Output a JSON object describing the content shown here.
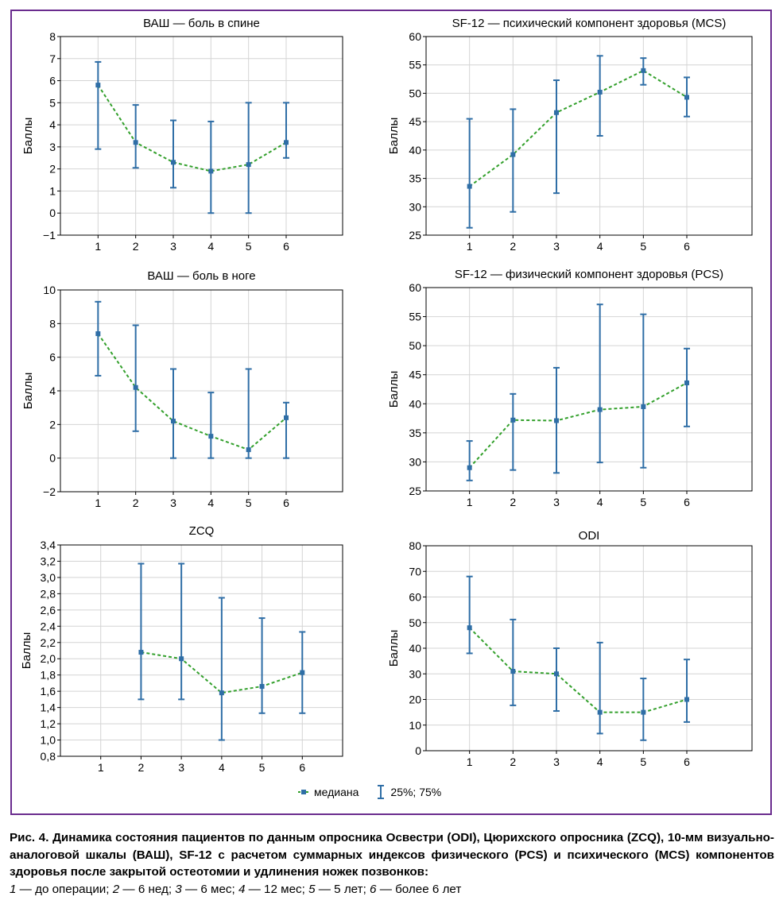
{
  "chart_data": [
    {
      "type": "line",
      "title": "ВАШ — боль в спине",
      "ylabel": "Баллы",
      "ylim": [
        -1,
        8
      ],
      "yticks": [
        "−1",
        "0",
        "1",
        "2",
        "3",
        "4",
        "5",
        "6",
        "7",
        "8"
      ],
      "ytick_values": [
        -1,
        0,
        1,
        2,
        3,
        4,
        5,
        6,
        7,
        8
      ],
      "xlim": [
        0,
        7.5
      ],
      "categories": [
        "1",
        "2",
        "3",
        "4",
        "5",
        "6"
      ],
      "x": [
        1,
        2,
        3,
        4,
        5,
        6
      ],
      "series": [
        {
          "name": "медиана",
          "values": [
            5.8,
            3.2,
            2.3,
            1.9,
            2.2,
            3.2
          ]
        },
        {
          "name": "25%",
          "values": [
            2.9,
            2.05,
            1.15,
            0.0,
            0.0,
            2.5
          ]
        },
        {
          "name": "75%",
          "values": [
            6.85,
            4.9,
            4.2,
            4.15,
            5.0,
            5.0
          ]
        }
      ],
      "grid": true
    },
    {
      "type": "line",
      "title": "SF-12 — психический компонент здоровья (MCS)",
      "ylabel": "Баллы",
      "ylim": [
        25,
        60
      ],
      "yticks": [
        "25",
        "30",
        "35",
        "40",
        "45",
        "50",
        "55",
        "60"
      ],
      "ytick_values": [
        25,
        30,
        35,
        40,
        45,
        50,
        55,
        60
      ],
      "xlim": [
        0,
        7.5
      ],
      "categories": [
        "1",
        "2",
        "3",
        "4",
        "5",
        "6"
      ],
      "x": [
        1,
        2,
        3,
        4,
        5,
        6
      ],
      "series": [
        {
          "name": "медиана",
          "values": [
            33.6,
            39.2,
            46.6,
            50.2,
            54.0,
            49.3
          ]
        },
        {
          "name": "25%",
          "values": [
            26.3,
            29.1,
            32.4,
            42.5,
            51.5,
            45.9
          ]
        },
        {
          "name": "75%",
          "values": [
            45.5,
            47.2,
            52.3,
            56.6,
            56.2,
            52.8
          ]
        }
      ],
      "grid": true
    },
    {
      "type": "line",
      "title": "ВАШ — боль в ноге",
      "ylabel": "Баллы",
      "ylim": [
        -2,
        10
      ],
      "yticks": [
        "−2",
        "0",
        "2",
        "4",
        "6",
        "8",
        "10"
      ],
      "ytick_values": [
        -2,
        0,
        2,
        4,
        6,
        8,
        10
      ],
      "xlim": [
        0,
        7.5
      ],
      "categories": [
        "1",
        "2",
        "3",
        "4",
        "5",
        "6"
      ],
      "x": [
        1,
        2,
        3,
        4,
        5,
        6
      ],
      "series": [
        {
          "name": "медиана",
          "values": [
            7.4,
            4.2,
            2.2,
            1.3,
            0.5,
            2.4
          ]
        },
        {
          "name": "25%",
          "values": [
            4.9,
            1.6,
            0.0,
            0.0,
            0.0,
            0.0
          ]
        },
        {
          "name": "75%",
          "values": [
            9.3,
            7.9,
            5.3,
            3.9,
            5.3,
            3.3
          ]
        }
      ],
      "grid": true
    },
    {
      "type": "line",
      "title": "SF-12 — физический компонент здоровья (PCS)",
      "ylabel": "Баллы",
      "ylim": [
        25,
        60
      ],
      "yticks": [
        "25",
        "30",
        "35",
        "40",
        "45",
        "50",
        "55",
        "60"
      ],
      "ytick_values": [
        25,
        30,
        35,
        40,
        45,
        50,
        55,
        60
      ],
      "xlim": [
        0,
        7.5
      ],
      "categories": [
        "1",
        "2",
        "3",
        "4",
        "5",
        "6"
      ],
      "x": [
        1,
        2,
        3,
        4,
        5,
        6
      ],
      "series": [
        {
          "name": "медиана",
          "values": [
            29.0,
            37.2,
            37.1,
            39.0,
            39.5,
            43.6
          ]
        },
        {
          "name": "25%",
          "values": [
            26.8,
            28.6,
            28.1,
            29.9,
            29.0,
            36.1
          ]
        },
        {
          "name": "75%",
          "values": [
            33.6,
            41.7,
            46.2,
            57.1,
            55.4,
            49.5
          ]
        }
      ],
      "grid": true
    },
    {
      "type": "line",
      "title": "ZCQ",
      "ylabel": "Баллы",
      "ylim": [
        0.8,
        3.4
      ],
      "yticks": [
        "0,8",
        "1,0",
        "1,2",
        "1,4",
        "1,6",
        "1,8",
        "2,0",
        "2,2",
        "2,4",
        "2,6",
        "2,8",
        "3,0",
        "3,2",
        "3,4"
      ],
      "ytick_values": [
        0.8,
        1.0,
        1.2,
        1.4,
        1.6,
        1.8,
        2.0,
        2.2,
        2.4,
        2.6,
        2.8,
        3.0,
        3.2,
        3.4
      ],
      "xlim": [
        0,
        7
      ],
      "categories": [
        "1",
        "2",
        "3",
        "4",
        "5",
        "6"
      ],
      "x": [
        1,
        2,
        3,
        4,
        5,
        6
      ],
      "series": [
        {
          "name": "медиана",
          "values": [
            null,
            2.08,
            2.0,
            1.58,
            1.66,
            1.83
          ]
        },
        {
          "name": "25%",
          "values": [
            null,
            1.5,
            1.5,
            1.0,
            1.33,
            1.33
          ]
        },
        {
          "name": "75%",
          "values": [
            null,
            3.17,
            3.17,
            2.75,
            2.5,
            2.33
          ]
        }
      ],
      "grid": true
    },
    {
      "type": "line",
      "title": "ODI",
      "ylabel": "Баллы",
      "ylim": [
        0,
        80
      ],
      "yticks": [
        "0",
        "10",
        "20",
        "30",
        "40",
        "50",
        "60",
        "70",
        "80"
      ],
      "ytick_values": [
        0,
        10,
        20,
        30,
        40,
        50,
        60,
        70,
        80
      ],
      "xlim": [
        0,
        7.5
      ],
      "categories": [
        "1",
        "2",
        "3",
        "4",
        "5",
        "6"
      ],
      "x": [
        1,
        2,
        3,
        4,
        5,
        6
      ],
      "series": [
        {
          "name": "медиана",
          "values": [
            48,
            31,
            30,
            15,
            15,
            20
          ]
        },
        {
          "name": "25%",
          "values": [
            38,
            17.7,
            15.5,
            6.7,
            4.1,
            11.2
          ]
        },
        {
          "name": "75%",
          "values": [
            68,
            51.2,
            40,
            42.2,
            28.2,
            35.6
          ]
        }
      ],
      "grid": true
    }
  ],
  "legend": {
    "median_label": "медиана",
    "range_label": "25%; 75%"
  },
  "colors": {
    "frame": "#6a2c8e",
    "errorbar": "#2f6ea6",
    "median_line": "#33a02c",
    "grid": "#d4d4d4"
  },
  "caption": {
    "bold": "Рис. 4. Динамика состояния пациентов по данным опросника Освестри (ODI), Цюрихского опросника (ZCQ), 10-мм визуально-аналоговой шкалы (ВАШ), SF-12 с расчетом суммарных индексов физического (PCS) и психического (MCS) компонентов здоровья после закрытой остеотомии и удлинения ножек позвонков:",
    "legend_items": [
      {
        "num": "1",
        "text": " — до операции; "
      },
      {
        "num": "2",
        "text": " — 6 нед; "
      },
      {
        "num": "3",
        "text": " — 6 мес; "
      },
      {
        "num": "4",
        "text": " — 12 мес; "
      },
      {
        "num": "5",
        "text": " — 5 лет; "
      },
      {
        "num": "6",
        "text": " — более 6 лет"
      }
    ]
  }
}
